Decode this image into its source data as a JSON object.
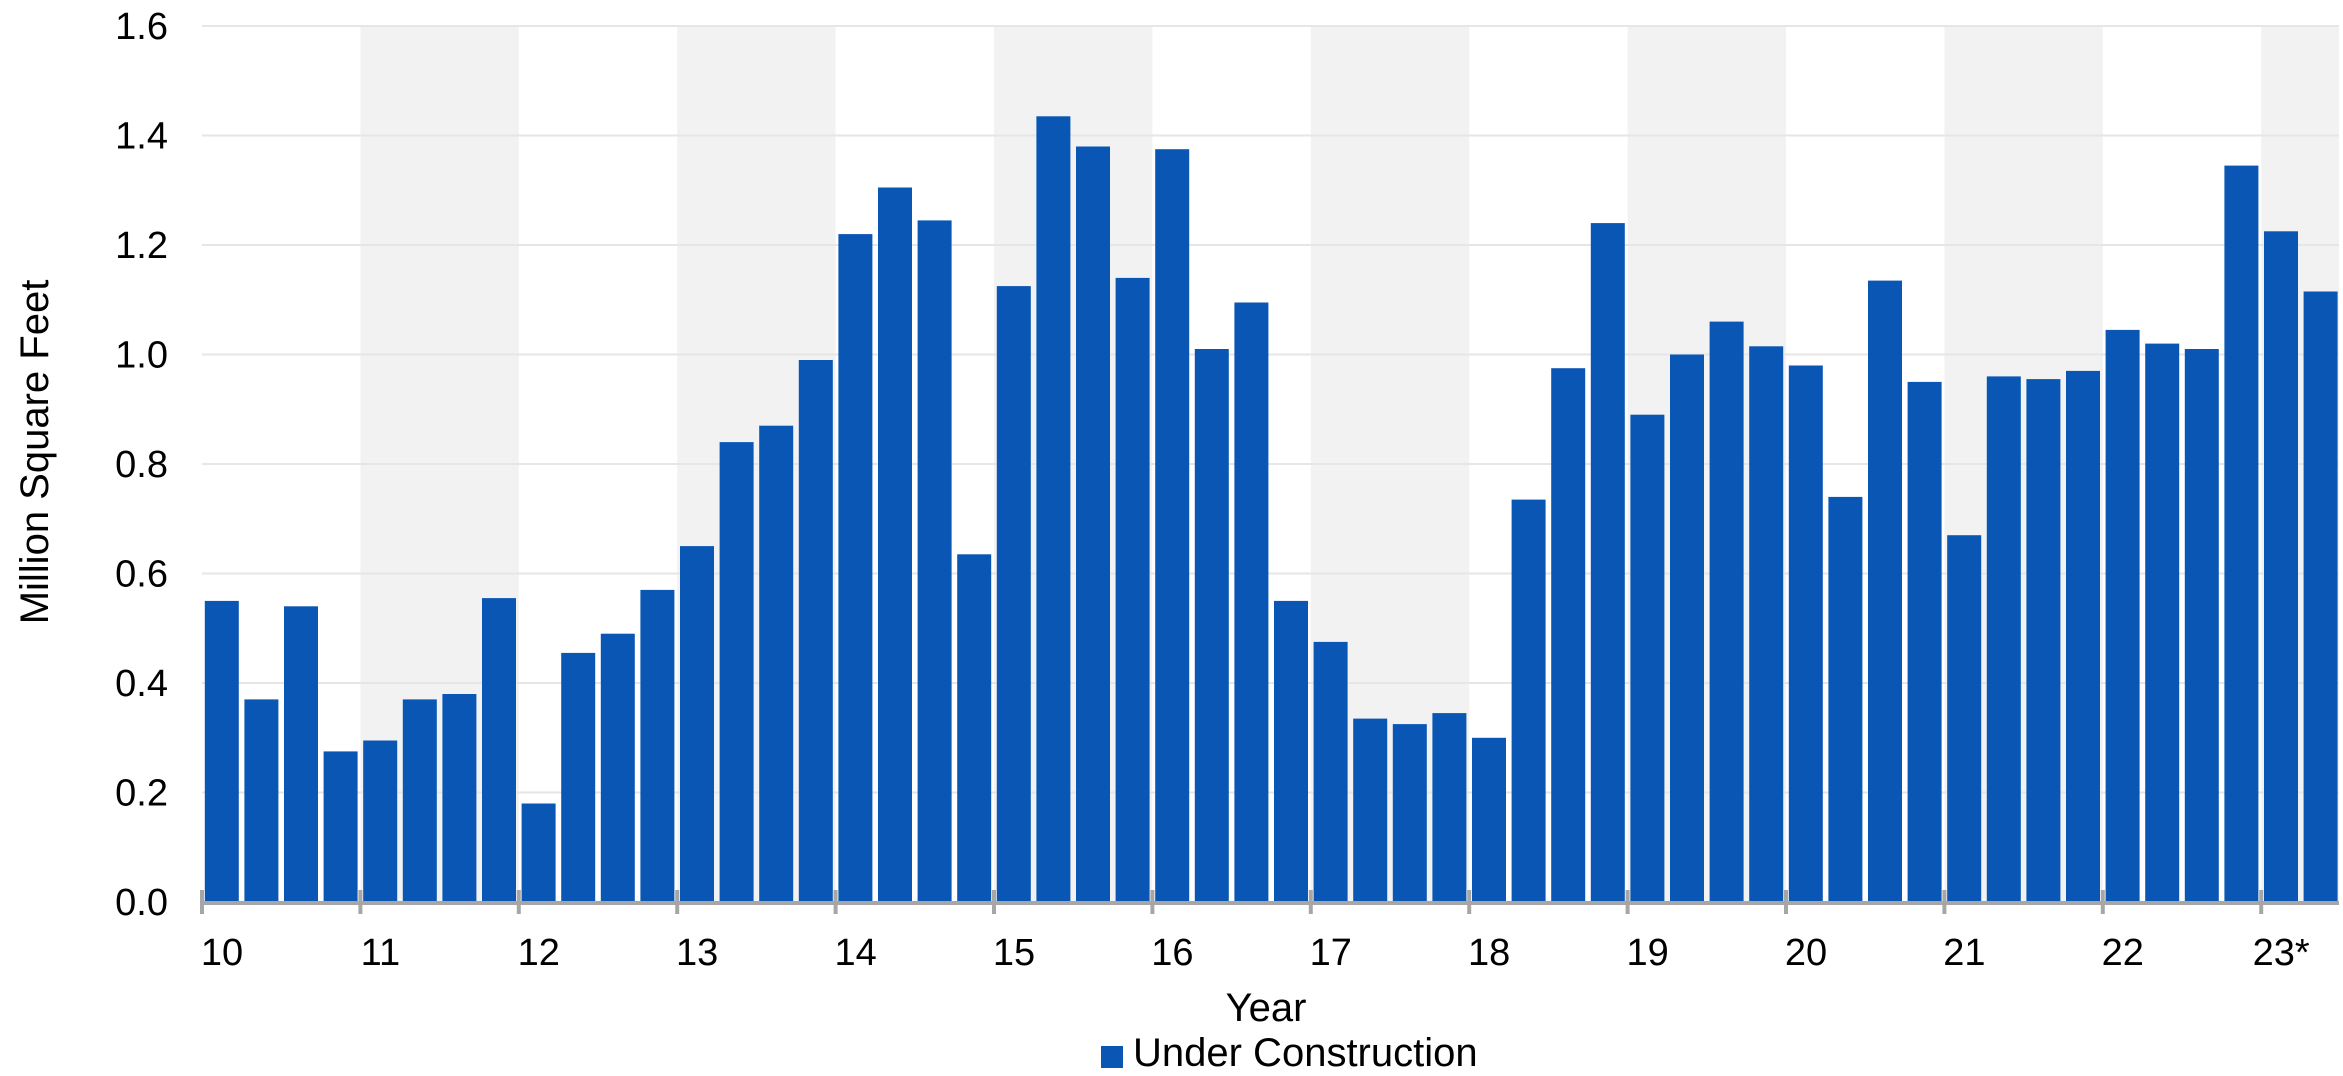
{
  "chart_data": {
    "type": "bar",
    "title": "",
    "xlabel": "Year",
    "ylabel": "Million Square Feet",
    "ylim": [
      0,
      1.6
    ],
    "yticks": [
      "0.0",
      "0.2",
      "0.4",
      "0.6",
      "0.8",
      "1.0",
      "1.2",
      "1.4",
      "1.6"
    ],
    "year_labels": [
      "10",
      "11",
      "12",
      "13",
      "14",
      "15",
      "16",
      "17",
      "18",
      "19",
      "20",
      "21",
      "22",
      "23*"
    ],
    "bars_per_year": 4,
    "grid": "horizontal",
    "alternating_year_shading": true,
    "legend_position": "bottom-center",
    "series": [
      {
        "name": "Under Construction",
        "color": "#0a56b5",
        "values": [
          0.55,
          0.37,
          0.54,
          0.275,
          0.295,
          0.37,
          0.38,
          0.555,
          0.18,
          0.455,
          0.49,
          0.57,
          0.65,
          0.84,
          0.87,
          0.99,
          1.22,
          1.305,
          1.245,
          0.635,
          1.125,
          1.435,
          1.38,
          1.14,
          1.375,
          1.01,
          1.095,
          0.55,
          0.475,
          0.335,
          0.325,
          0.345,
          0.3,
          0.735,
          0.975,
          1.24,
          0.89,
          1.0,
          1.06,
          1.015,
          0.98,
          0.74,
          1.135,
          0.95,
          0.67,
          0.96,
          0.955,
          0.97,
          1.045,
          1.02,
          1.01,
          1.345,
          1.225,
          1.115
        ]
      }
    ],
    "colors": {
      "bar": "#0a56b5",
      "shade": "#f2f2f2",
      "grid": "#e6e6e6",
      "axis": "#a6a6a6"
    }
  }
}
